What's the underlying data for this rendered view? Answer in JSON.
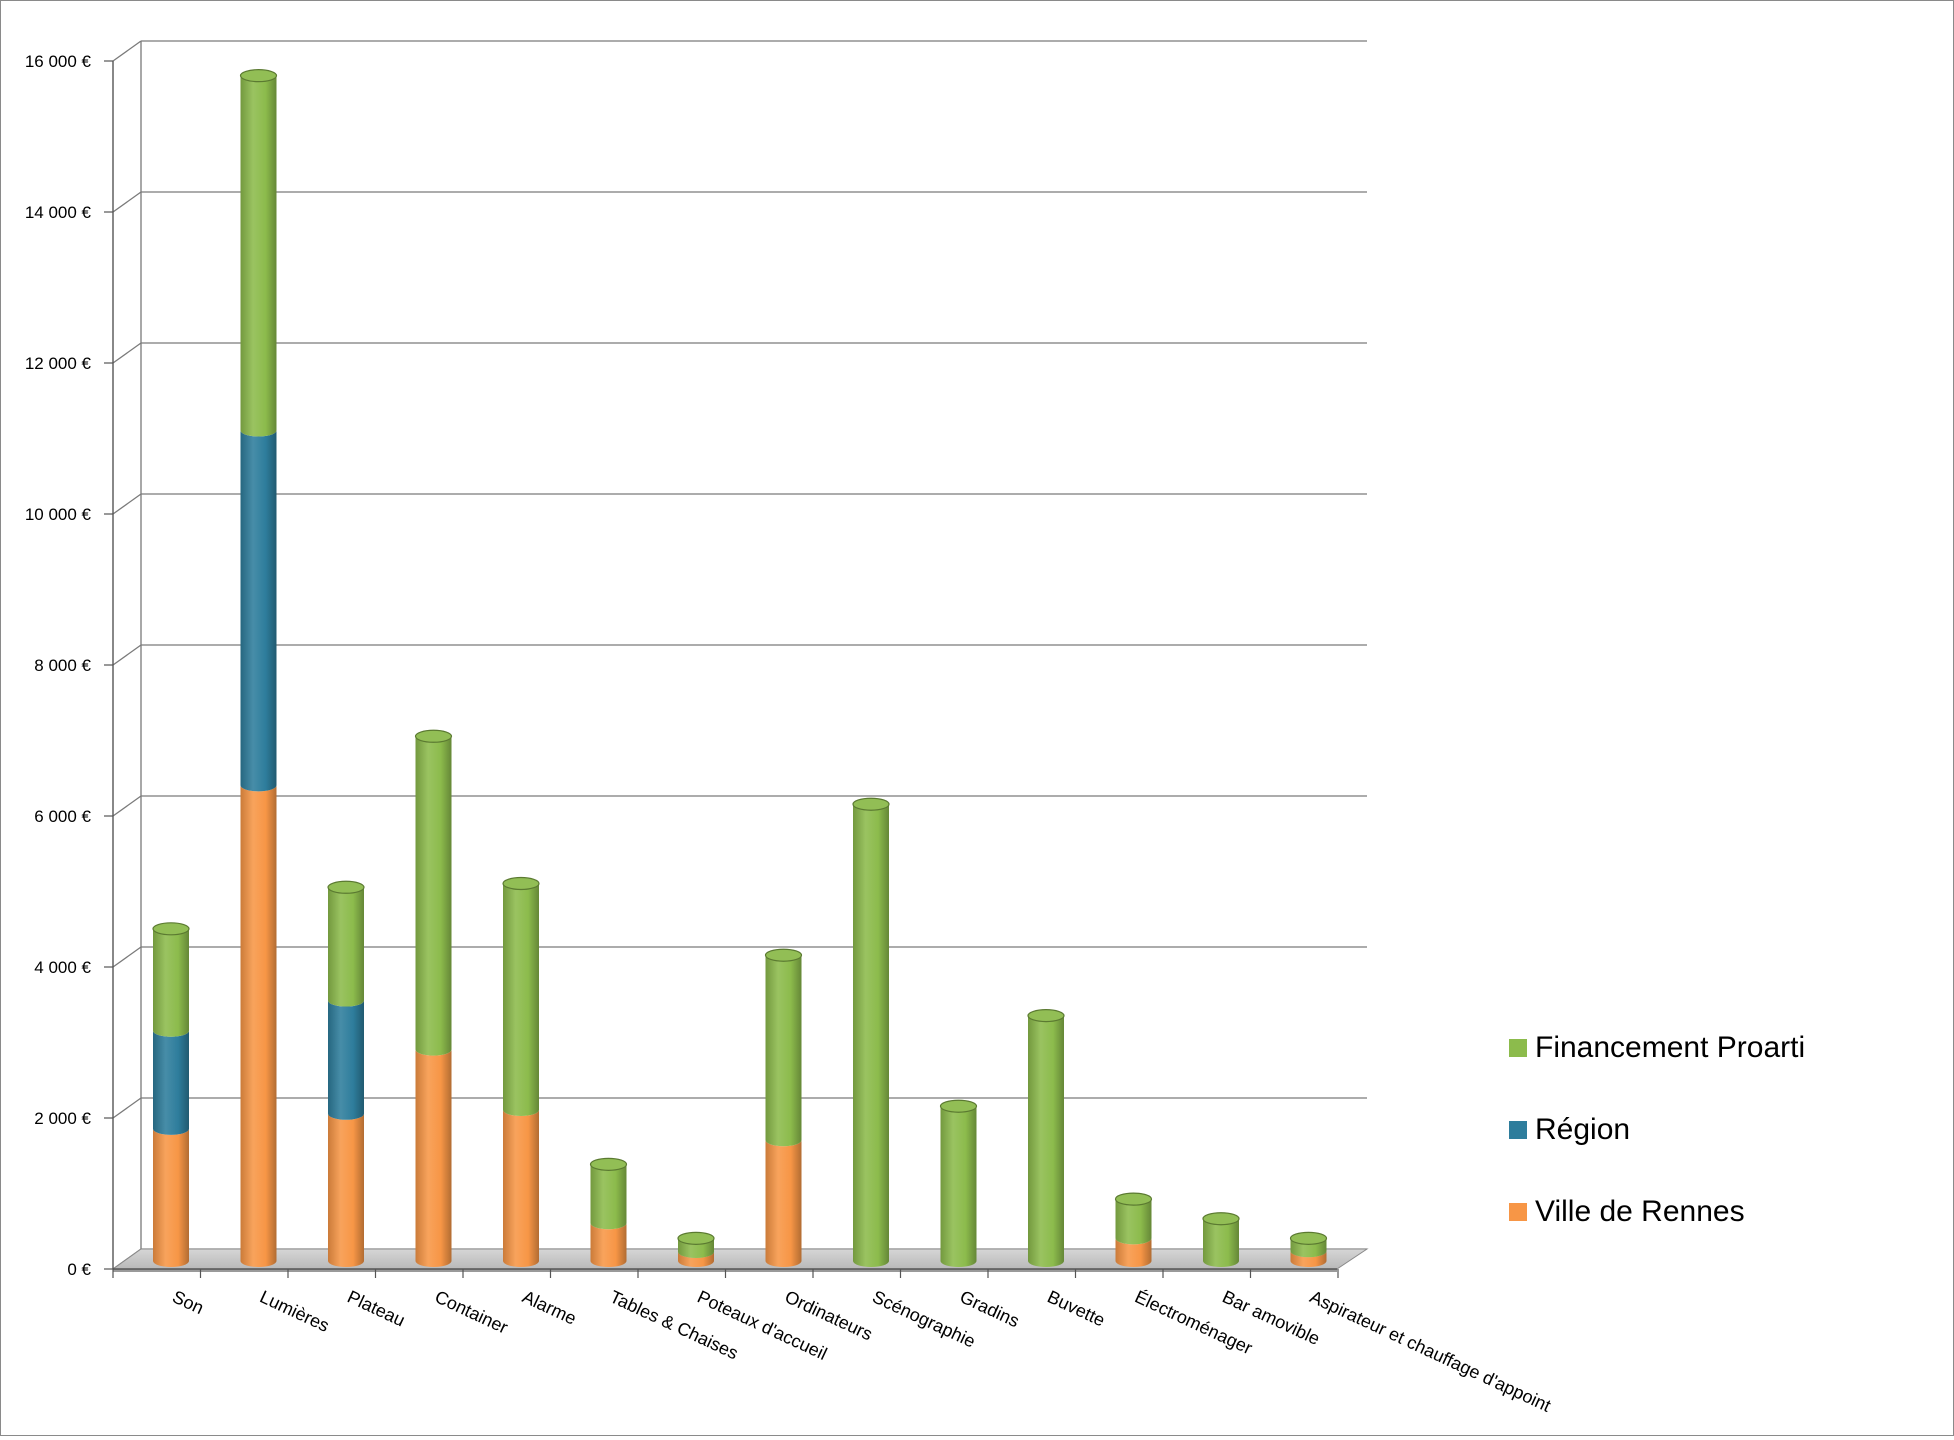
{
  "chart_data": {
    "type": "bar",
    "stacked": true,
    "style": "3d-cylinder",
    "title": "",
    "xlabel": "",
    "ylabel": "",
    "ylim": [
      0,
      16000
    ],
    "yticks": [
      0,
      2000,
      4000,
      6000,
      8000,
      10000,
      12000,
      14000,
      16000
    ],
    "ytick_labels": [
      "0 €",
      "2 000 €",
      "4 000 €",
      "6 000 €",
      "8 000 €",
      "10 000 €",
      "12 000 €",
      "14 000 €",
      "16 000 €"
    ],
    "grid": true,
    "legend_position": "right",
    "categories": [
      "Son",
      "Lumières",
      "Plateau",
      "Container",
      "Alarme",
      "Tables & Chaises",
      "Poteaux d'accueil",
      "Ordinateurs",
      "Scénographie",
      "Gradins",
      "Buvette",
      "Électroménager",
      "Bar amovible",
      "Aspirateur et chauffage d'appoint"
    ],
    "series": [
      {
        "name": "Ville de Rennes",
        "color": "#f79646",
        "values": [
          1750,
          6300,
          1950,
          2800,
          2000,
          500,
          120,
          1600,
          0,
          0,
          0,
          300,
          0,
          130
        ]
      },
      {
        "name": "Région",
        "color": "#2e7d9c",
        "values": [
          1300,
          4700,
          1500,
          0,
          0,
          0,
          0,
          0,
          0,
          0,
          0,
          0,
          0,
          0
        ]
      },
      {
        "name": "Financement Proarti",
        "color": "#8cbb4c",
        "values": [
          1350,
          4700,
          1500,
          4150,
          3000,
          780,
          180,
          2450,
          6050,
          2050,
          3250,
          520,
          560,
          170
        ]
      }
    ]
  }
}
